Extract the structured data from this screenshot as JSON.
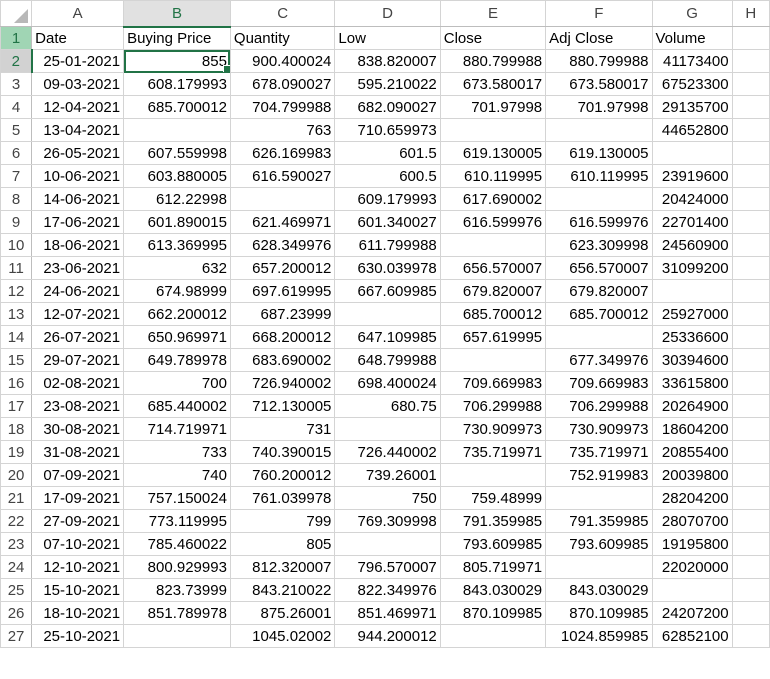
{
  "columns": [
    "A",
    "B",
    "C",
    "D",
    "E",
    "F",
    "G",
    "H"
  ],
  "selected_cell": "B2",
  "accent_color": "#217346",
  "headers": [
    "Date",
    "Buying Price",
    "Quantity",
    "Low",
    "Close",
    "Adj Close",
    "Volume"
  ],
  "rows": [
    [
      "25-01-2021",
      "855",
      "900.400024",
      "838.820007",
      "880.799988",
      "880.799988",
      "41173400"
    ],
    [
      "09-03-2021",
      "608.179993",
      "678.090027",
      "595.210022",
      "673.580017",
      "673.580017",
      "67523300"
    ],
    [
      "12-04-2021",
      "685.700012",
      "704.799988",
      "682.090027",
      "701.97998",
      "701.97998",
      "29135700"
    ],
    [
      "13-04-2021",
      "",
      "763",
      "710.659973",
      "",
      "",
      "44652800"
    ],
    [
      "26-05-2021",
      "607.559998",
      "626.169983",
      "601.5",
      "619.130005",
      "619.130005",
      ""
    ],
    [
      "10-06-2021",
      "603.880005",
      "616.590027",
      "600.5",
      "610.119995",
      "610.119995",
      "23919600"
    ],
    [
      "14-06-2021",
      "612.22998",
      "",
      "609.179993",
      "617.690002",
      "",
      "20424000"
    ],
    [
      "17-06-2021",
      "601.890015",
      "621.469971",
      "601.340027",
      "616.599976",
      "616.599976",
      "22701400"
    ],
    [
      "18-06-2021",
      "613.369995",
      "628.349976",
      "611.799988",
      "",
      "623.309998",
      "24560900"
    ],
    [
      "23-06-2021",
      "632",
      "657.200012",
      "630.039978",
      "656.570007",
      "656.570007",
      "31099200"
    ],
    [
      "24-06-2021",
      "674.98999",
      "697.619995",
      "667.609985",
      "679.820007",
      "679.820007",
      ""
    ],
    [
      "12-07-2021",
      "662.200012",
      "687.23999",
      "",
      "685.700012",
      "685.700012",
      "25927000"
    ],
    [
      "26-07-2021",
      "650.969971",
      "668.200012",
      "647.109985",
      "657.619995",
      "",
      "25336600"
    ],
    [
      "29-07-2021",
      "649.789978",
      "683.690002",
      "648.799988",
      "",
      "677.349976",
      "30394600"
    ],
    [
      "02-08-2021",
      "700",
      "726.940002",
      "698.400024",
      "709.669983",
      "709.669983",
      "33615800"
    ],
    [
      "23-08-2021",
      "685.440002",
      "712.130005",
      "680.75",
      "706.299988",
      "706.299988",
      "20264900"
    ],
    [
      "30-08-2021",
      "714.719971",
      "731",
      "",
      "730.909973",
      "730.909973",
      "18604200"
    ],
    [
      "31-08-2021",
      "733",
      "740.390015",
      "726.440002",
      "735.719971",
      "735.719971",
      "20855400"
    ],
    [
      "07-09-2021",
      "740",
      "760.200012",
      "739.26001",
      "",
      "752.919983",
      "20039800"
    ],
    [
      "17-09-2021",
      "757.150024",
      "761.039978",
      "750",
      "759.48999",
      "",
      "28204200"
    ],
    [
      "27-09-2021",
      "773.119995",
      "799",
      "769.309998",
      "791.359985",
      "791.359985",
      "28070700"
    ],
    [
      "07-10-2021",
      "785.460022",
      "805",
      "",
      "793.609985",
      "793.609985",
      "19195800"
    ],
    [
      "12-10-2021",
      "800.929993",
      "812.320007",
      "796.570007",
      "805.719971",
      "",
      "22020000"
    ],
    [
      "15-10-2021",
      "823.73999",
      "843.210022",
      "822.349976",
      "843.030029",
      "843.030029",
      ""
    ],
    [
      "18-10-2021",
      "851.789978",
      "875.26001",
      "851.469971",
      "870.109985",
      "870.109985",
      "24207200"
    ],
    [
      "25-10-2021",
      "",
      "1045.02002",
      "944.200012",
      "",
      "1024.859985",
      "62852100"
    ]
  ]
}
